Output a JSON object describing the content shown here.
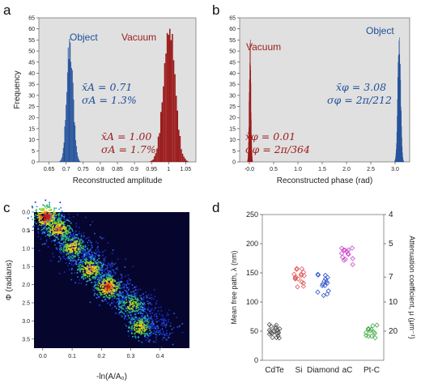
{
  "panels": {
    "a": "a",
    "b": "b",
    "c": "c",
    "d": "d"
  },
  "colors": {
    "object": "#1f4e99",
    "vacuum": "#9b1c1c",
    "hist_bg": "#e0e0e0",
    "heat_bg": "#06052e",
    "CdTe": "#555555",
    "Si": "#e05a5a",
    "Diamond": "#3355cc",
    "aC": "#cc44cc",
    "PtC": "#44aa44"
  },
  "chart_data": [
    {
      "id": "a",
      "type": "bar",
      "xlabel": "Reconstructed amplitude",
      "ylabel": "Frequency",
      "xlim": [
        0.62,
        1.08
      ],
      "ylim": [
        0,
        65
      ],
      "xticks": [
        "0.65",
        "0.7",
        "0.75",
        "0.8",
        "0.85",
        "0.9",
        "0.95",
        "1",
        "1.05"
      ],
      "xtick_values": [
        0.65,
        0.7,
        0.75,
        0.8,
        0.85,
        0.9,
        0.95,
        1.0,
        1.05
      ],
      "yticks": [
        "0",
        "5",
        "10",
        "15",
        "20",
        "25",
        "30",
        "35",
        "40",
        "45",
        "50",
        "55",
        "60",
        "65"
      ],
      "ytick_values": [
        0,
        5,
        10,
        15,
        20,
        25,
        30,
        35,
        40,
        45,
        50,
        55,
        60,
        65
      ],
      "series": [
        {
          "name": "Object",
          "mean": 0.71,
          "sigma": 0.0092,
          "peak": 57,
          "color": "#1f4e99",
          "stat_mean": "x̄A = 0.71",
          "stat_sigma": "σA = 1.3%"
        },
        {
          "name": "Vacuum",
          "mean": 1.0,
          "sigma": 0.017,
          "peak": 61,
          "color": "#9b1c1c",
          "stat_mean": "x̄A = 1.00",
          "stat_sigma": "σA = 1.7%"
        }
      ]
    },
    {
      "id": "b",
      "type": "bar",
      "xlabel": "Reconstructed phase (rad)",
      "ylabel": "",
      "xlim": [
        -0.2,
        3.3
      ],
      "ylim": [
        0,
        65
      ],
      "xticks": [
        "-0.0",
        "0.5",
        "1.0",
        "1.5",
        "2.0",
        "2.5",
        "3.0"
      ],
      "xtick_values": [
        0.0,
        0.5,
        1.0,
        1.5,
        2.0,
        2.5,
        3.0
      ],
      "yticks": [
        "0",
        "5",
        "10",
        "15",
        "20",
        "25",
        "30",
        "35",
        "40",
        "45",
        "50",
        "55",
        "60",
        "65"
      ],
      "ytick_values": [
        0,
        5,
        10,
        15,
        20,
        25,
        30,
        35,
        40,
        45,
        50,
        55,
        60,
        65
      ],
      "series": [
        {
          "name": "Vacuum",
          "mean": 0.01,
          "sigma": 0.0173,
          "peak": 52,
          "color": "#9b1c1c",
          "stat_mean": "x̄φ = 0.01",
          "stat_sigma": "σφ = 2π/364"
        },
        {
          "name": "Object",
          "mean": 3.08,
          "sigma": 0.0296,
          "peak": 58,
          "color": "#1f4e99",
          "stat_mean": "x̄φ = 3.08",
          "stat_sigma": "σφ = 2π/212"
        }
      ]
    },
    {
      "id": "c",
      "type": "heatmap",
      "xlabel": "-ln(A/A₀)",
      "ylabel": "Φ (radians)",
      "xlim": [
        -0.03,
        0.5
      ],
      "ylim": [
        0,
        3.75
      ],
      "xticks": [
        "0.0",
        "0.1",
        "0.2",
        "0.3",
        "0.4"
      ],
      "xtick_values": [
        0.0,
        0.1,
        0.2,
        0.3,
        0.4
      ],
      "yticks": [
        "0.0",
        "0.5",
        "1.0",
        "1.5",
        "2.0",
        "2.5",
        "3.0",
        "3.5"
      ],
      "ytick_values": [
        0.0,
        0.5,
        1.0,
        1.5,
        2.0,
        2.5,
        3.0,
        3.5
      ],
      "clusters": [
        {
          "x": 0.01,
          "y": 0.12,
          "density": 1.0
        },
        {
          "x": 0.05,
          "y": 0.45,
          "density": 0.8
        },
        {
          "x": 0.1,
          "y": 0.95,
          "density": 0.7
        },
        {
          "x": 0.16,
          "y": 1.55,
          "density": 0.75
        },
        {
          "x": 0.22,
          "y": 2.05,
          "density": 0.9
        },
        {
          "x": 0.3,
          "y": 2.55,
          "density": 0.55
        },
        {
          "x": 0.33,
          "y": 3.15,
          "density": 0.6
        }
      ]
    },
    {
      "id": "d",
      "type": "scatter",
      "ylabel": "Mean free path, λ (nm)",
      "y2label": "Attenuation coefficient, μ (μm⁻¹)",
      "ylim": [
        0,
        250
      ],
      "yticks": [
        "0",
        "50",
        "100",
        "150",
        "200",
        "250"
      ],
      "ytick_values": [
        0,
        50,
        100,
        150,
        200,
        250
      ],
      "y2ticks": [
        "4",
        "5",
        "7",
        "10",
        "20"
      ],
      "y2tick_values": [
        4,
        5,
        7,
        10,
        20
      ],
      "categories": [
        "CdTe",
        "Si",
        "Diamond",
        "aC",
        "Pt-C"
      ],
      "series": [
        {
          "name": "CdTe",
          "center": 52,
          "spread": 9,
          "count": 22,
          "color": "#555555"
        },
        {
          "name": "Si",
          "center": 143,
          "spread": 10,
          "count": 16,
          "color": "#e05a5a"
        },
        {
          "name": "Diamond",
          "center": 135,
          "spread": 9,
          "count": 15,
          "color": "#3355cc"
        },
        {
          "name": "aC",
          "center": 182,
          "spread": 10,
          "count": 14,
          "color": "#cc44cc"
        },
        {
          "name": "Pt-C",
          "center": 48,
          "spread": 7,
          "count": 14,
          "color": "#44aa44"
        }
      ]
    }
  ]
}
